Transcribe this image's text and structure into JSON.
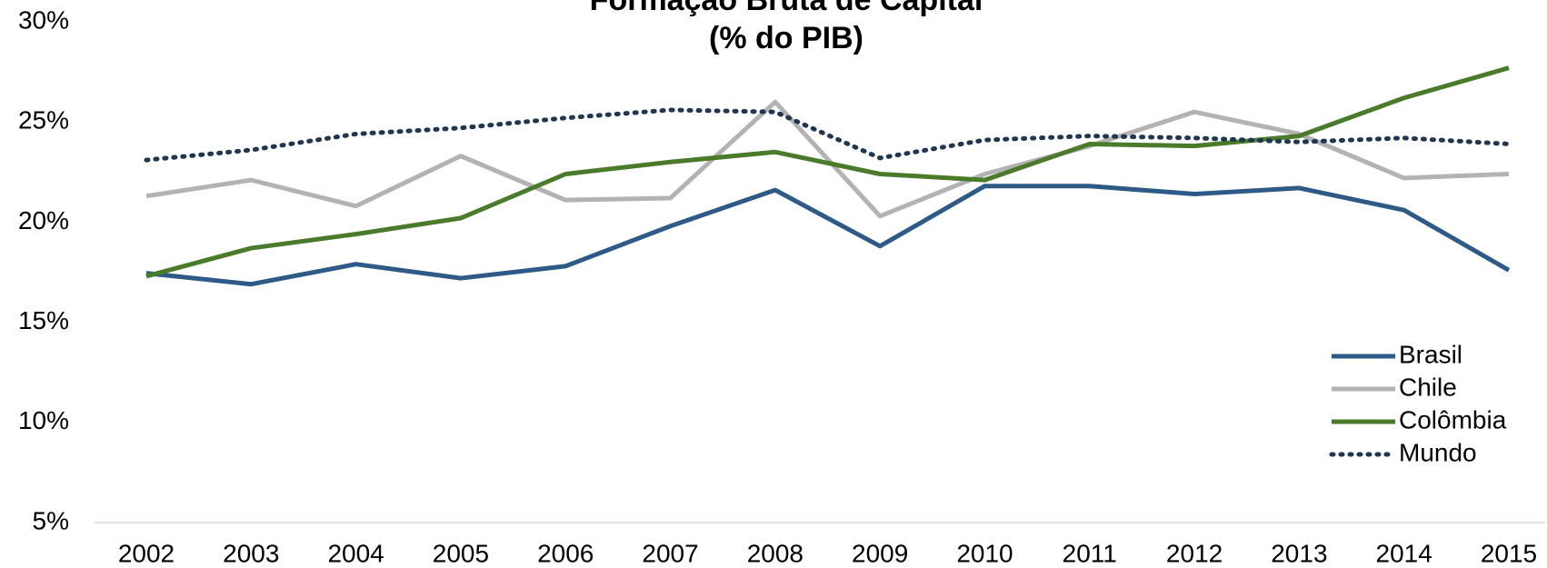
{
  "chart_data": {
    "type": "line",
    "title": "Formação Bruta de Capital",
    "subtitle": "(% do PIB)",
    "categories": [
      "2002",
      "2003",
      "2004",
      "2005",
      "2006",
      "2007",
      "2008",
      "2009",
      "2010",
      "2011",
      "2012",
      "2013",
      "2014",
      "2015"
    ],
    "series": [
      {
        "name": "Brasil",
        "color": "#2e5a88",
        "dash": "solid",
        "values": [
          17.45,
          16.9,
          17.9,
          17.2,
          17.8,
          19.8,
          21.6,
          18.8,
          21.8,
          21.8,
          21.4,
          21.7,
          20.6,
          17.6
        ]
      },
      {
        "name": "Chile",
        "color": "#b3b3b3",
        "dash": "solid",
        "values": [
          21.3,
          22.1,
          20.8,
          23.3,
          21.1,
          21.2,
          26.0,
          20.3,
          22.4,
          23.8,
          25.5,
          24.4,
          22.2,
          22.4
        ]
      },
      {
        "name": "Colômbia",
        "color": "#4a7b2b",
        "dash": "solid",
        "values": [
          17.3,
          18.7,
          19.4,
          20.2,
          22.4,
          23.0,
          23.5,
          22.4,
          22.1,
          23.9,
          23.8,
          24.3,
          26.2,
          27.7
        ]
      },
      {
        "name": "Mundo",
        "color": "#1f3550",
        "dash": "dotted",
        "values": [
          23.1,
          23.6,
          24.4,
          24.7,
          25.2,
          25.6,
          25.5,
          23.2,
          24.1,
          24.3,
          24.2,
          24.0,
          24.2,
          23.9
        ]
      }
    ],
    "ylim": [
      5,
      30
    ],
    "yticks": [
      {
        "value": 5,
        "label": "5%"
      },
      {
        "value": 10,
        "label": "10%"
      },
      {
        "value": 15,
        "label": "15%"
      },
      {
        "value": 20,
        "label": "20%"
      },
      {
        "value": 25,
        "label": "25%"
      },
      {
        "value": 30,
        "label": "30%"
      }
    ],
    "grid": false,
    "legend": "lower right"
  }
}
